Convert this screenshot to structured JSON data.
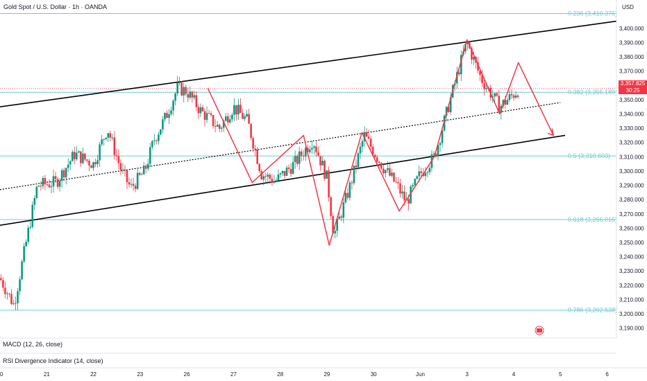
{
  "header": {
    "title": "Gold Spot / U.S. Dollar · 1h · OANDA"
  },
  "price_axis": {
    "currency": "USD",
    "last_price": "3,357.825",
    "countdown": "30:25"
  },
  "indicators": [
    {
      "label": "MACD (12, 26, close)"
    },
    {
      "label": "RSI Divergence Indicator (14, close)"
    }
  ],
  "colors": {
    "up": "#089981",
    "down": "#f23645",
    "fib": "#6fc9d0",
    "channel": "#000000",
    "pattern": "#f23645"
  },
  "chart_data": {
    "type": "candlestick",
    "y_ticks": [
      3190,
      3200,
      3210,
      3220,
      3230,
      3240,
      3250,
      3260,
      3270,
      3280,
      3290,
      3300,
      3310,
      3320,
      3330,
      3340,
      3350,
      3360,
      3370,
      3380,
      3390,
      3400
    ],
    "y_tick_labels": [
      "3,190.000",
      "3,200.000",
      "3,210.000",
      "3,220.000",
      "3,230.000",
      "3,240.000",
      "3,250.000",
      "3,260.000",
      "3,270.000",
      "3,280.000",
      "3,290.000",
      "3,300.000",
      "3,310.000",
      "3,320.000",
      "3,330.000",
      "3,340.000",
      "3,350.000",
      "3,360.000",
      "3,370.000",
      "3,380.000",
      "3,390.000",
      "3,400.000"
    ],
    "ylim": [
      3183,
      3415
    ],
    "x_ticks": [
      {
        "label": "20",
        "d": 0
      },
      {
        "label": "21",
        "d": 1
      },
      {
        "label": "22",
        "d": 2
      },
      {
        "label": "23",
        "d": 3
      },
      {
        "label": "26",
        "d": 4
      },
      {
        "label": "27",
        "d": 5
      },
      {
        "label": "28",
        "d": 6
      },
      {
        "label": "29",
        "d": 7
      },
      {
        "label": "30",
        "d": 8
      },
      {
        "label": "Jun",
        "d": 9
      },
      {
        "label": "3",
        "d": 10
      },
      {
        "label": "4",
        "d": 11
      },
      {
        "label": "5",
        "d": 12
      },
      {
        "label": "6",
        "d": 13
      }
    ],
    "xlim": [
      0,
      13.2
    ],
    "fib_levels": [
      {
        "ratio": "0.236",
        "value": 3410.376,
        "label": "0.236 (3,410.376)"
      },
      {
        "ratio": "0.382",
        "value": 3355.189,
        "label": "0.382 (3,355.189)"
      },
      {
        "ratio": "0.5",
        "value": 3310.603,
        "label": "0.5 (3,310.603)"
      },
      {
        "ratio": "0.618",
        "value": 3266.016,
        "label": "0.618 (3,266.016)"
      },
      {
        "ratio": "0.786",
        "value": 3202.538,
        "label": "0.786 (3,202.538)"
      }
    ],
    "current_price": 3357.825,
    "channel_lines": [
      {
        "style": "solid",
        "points": [
          [
            0,
            3345
          ],
          [
            13.2,
            3405
          ]
        ]
      },
      {
        "style": "dotted",
        "points": [
          [
            0,
            3287
          ],
          [
            12,
            3348
          ]
        ]
      },
      {
        "style": "solid",
        "points": [
          [
            0,
            3262
          ],
          [
            12.1,
            3325
          ]
        ]
      }
    ],
    "pattern_path": [
      [
        4.45,
        3358
      ],
      [
        5.4,
        3292
      ],
      [
        6.5,
        3325
      ],
      [
        7.05,
        3248
      ],
      [
        7.75,
        3327
      ],
      [
        8.55,
        3272
      ],
      [
        9.3,
        3310
      ],
      [
        10,
        3392
      ],
      [
        10.7,
        3340
      ],
      [
        11.1,
        3376
      ],
      [
        11.85,
        3325
      ]
    ],
    "price_path": [
      [
        0,
        3225
      ],
      [
        0.3,
        3206
      ],
      [
        0.5,
        3240
      ],
      [
        0.8,
        3290
      ],
      [
        1.2,
        3292
      ],
      [
        1.6,
        3312
      ],
      [
        2.0,
        3305
      ],
      [
        2.3,
        3330
      ],
      [
        2.6,
        3300
      ],
      [
        2.8,
        3288
      ],
      [
        3.1,
        3300
      ],
      [
        3.3,
        3322
      ],
      [
        3.55,
        3338
      ],
      [
        3.8,
        3358
      ],
      [
        4.0,
        3356
      ],
      [
        4.3,
        3342
      ],
      [
        4.7,
        3330
      ],
      [
        5.0,
        3345
      ],
      [
        5.3,
        3335
      ],
      [
        5.6,
        3298
      ],
      [
        5.9,
        3293
      ],
      [
        6.3,
        3305
      ],
      [
        6.7,
        3322
      ],
      [
        7.0,
        3295
      ],
      [
        7.15,
        3255
      ],
      [
        7.5,
        3290
      ],
      [
        7.8,
        3325
      ],
      [
        8.2,
        3303
      ],
      [
        8.5,
        3290
      ],
      [
        8.7,
        3278
      ],
      [
        9.0,
        3298
      ],
      [
        9.3,
        3310
      ],
      [
        9.6,
        3345
      ],
      [
        9.9,
        3380
      ],
      [
        10.0,
        3390
      ],
      [
        10.3,
        3365
      ],
      [
        10.7,
        3345
      ],
      [
        11.0,
        3354
      ],
      [
        11.1,
        3357
      ]
    ]
  }
}
